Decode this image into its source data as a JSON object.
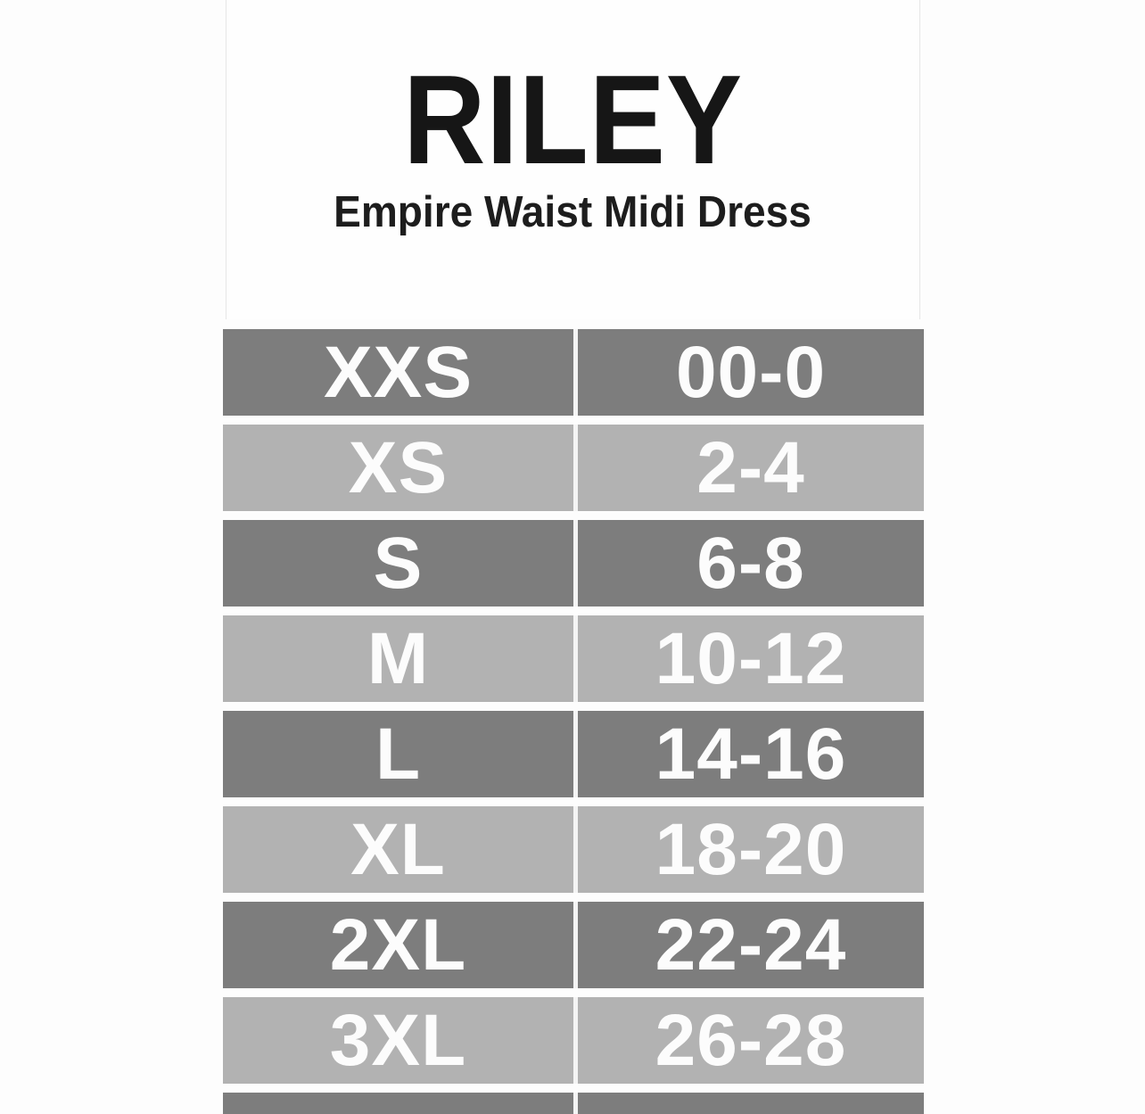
{
  "header": {
    "title": "RILEY",
    "subtitle": "Empire Waist Midi Dress"
  },
  "chart_data": {
    "type": "table",
    "title": "RILEY",
    "subtitle": "Empire Waist Midi Dress",
    "columns": [
      "size_label",
      "numeric_size_range"
    ],
    "rows": [
      [
        "XXS",
        "00-0"
      ],
      [
        "XS",
        "2-4"
      ],
      [
        "S",
        "6-8"
      ],
      [
        "M",
        "10-12"
      ],
      [
        "L",
        "14-16"
      ],
      [
        "XL",
        "18-20"
      ],
      [
        "2XL",
        "22-24"
      ],
      [
        "3XL",
        "26-28"
      ]
    ],
    "layout_hints": {
      "row_striping": [
        "dark",
        "light"
      ],
      "text_color": "#fcfcfc",
      "grid": "white dividers between rows and columns",
      "legend": "none"
    }
  },
  "colors": {
    "row_dark": "#7d7d7d",
    "row_light": "#b2b2b2",
    "divider": "#f4f4f4",
    "title_text": "#161616",
    "cell_text": "#fcfcfc",
    "background": "#fdfdfd"
  }
}
